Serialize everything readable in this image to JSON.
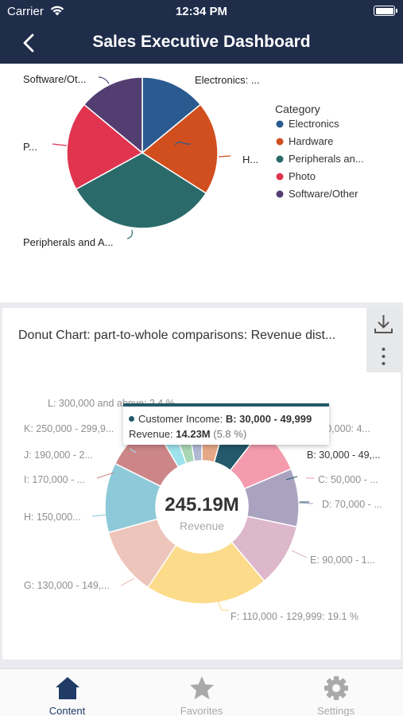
{
  "status_bar": {
    "carrier": "Carrier",
    "time": "12:34 PM"
  },
  "nav": {
    "title": "Sales Executive Dashboard"
  },
  "pie_chart": {
    "legend_title": "Category",
    "slice_labels": {
      "electronics": "Electronics: ...",
      "hardware": "H...",
      "peripherals": "Peripherals and A...",
      "photo": "P...",
      "software": "Software/Ot..."
    }
  },
  "donut_chart": {
    "title": "Donut Chart: part-to-whole comparisons: Revenue dist...",
    "center_value": "245.19M",
    "center_label": "Revenue",
    "slice_labels": {
      "L": "L: 300,000 and above: 2.4 %",
      "K": "K: 250,000 - 299,9...",
      "J": "J: 190,000 - 2...",
      "I": "I: 170,000 - ...",
      "H": "H: 150,000...",
      "G": "G: 130,000 - 149,...",
      "F": "F: 110,000 - 129,999: 19.1 %",
      "E": "E: 90,000 - 1...",
      "D": "D: 70,000 - ...",
      "C": "C: 50,000 - ...",
      "B": "B: 30,000 - 49,...",
      "A": "A: 30,000: 4..."
    },
    "tooltip": {
      "field_label": "Customer Income: ",
      "field_value": "B: 30,000 - 49,999",
      "measure_label": "Revenue: ",
      "measure_value": "14.23M",
      "measure_pct": "(5.8 %)"
    }
  },
  "chart_data": [
    {
      "type": "pie",
      "title": "",
      "legend_title": "Category",
      "legend_position": "right",
      "categories": [
        "Electronics",
        "Hardware",
        "Peripherals and Accessories",
        "Photo",
        "Software/Other"
      ],
      "values": [
        14,
        20,
        33,
        19,
        14
      ],
      "colors": [
        "#2a5a8f",
        "#d14f1f",
        "#2b6a6b",
        "#e0344f",
        "#533e72"
      ]
    },
    {
      "type": "pie",
      "title": "Donut Chart: part-to-whole comparisons: Revenue dist...",
      "center_value": "245.19M",
      "center_label": "Revenue",
      "categories": [
        "A",
        "B",
        "C",
        "D",
        "E",
        "F",
        "G",
        "H",
        "I",
        "J",
        "K",
        "L"
      ],
      "values": [
        4.0,
        5.8,
        7.5,
        9.0,
        9.8,
        19.1,
        10.5,
        10.8,
        8.5,
        2.8,
        2.7,
        2.4
      ],
      "colors": [
        "#e5a987",
        "#23596a",
        "#f49bae",
        "#aaa3c0",
        "#ddb7cc",
        "#fcdb8a",
        "#eec5ba",
        "#8ec9d9",
        "#cc8688",
        "#9ee2ec",
        "#a9d7b5",
        "#aeb9d4"
      ]
    }
  ],
  "tabs": [
    {
      "label": "Content",
      "icon": "home-icon",
      "active": true
    },
    {
      "label": "Favorites",
      "icon": "star-icon",
      "active": false
    },
    {
      "label": "Settings",
      "icon": "gear-icon",
      "active": false
    }
  ],
  "colors": {
    "header": "#1f2d4b",
    "active_tab": "#1f3b66",
    "inactive_tab": "#a9a9a9"
  }
}
